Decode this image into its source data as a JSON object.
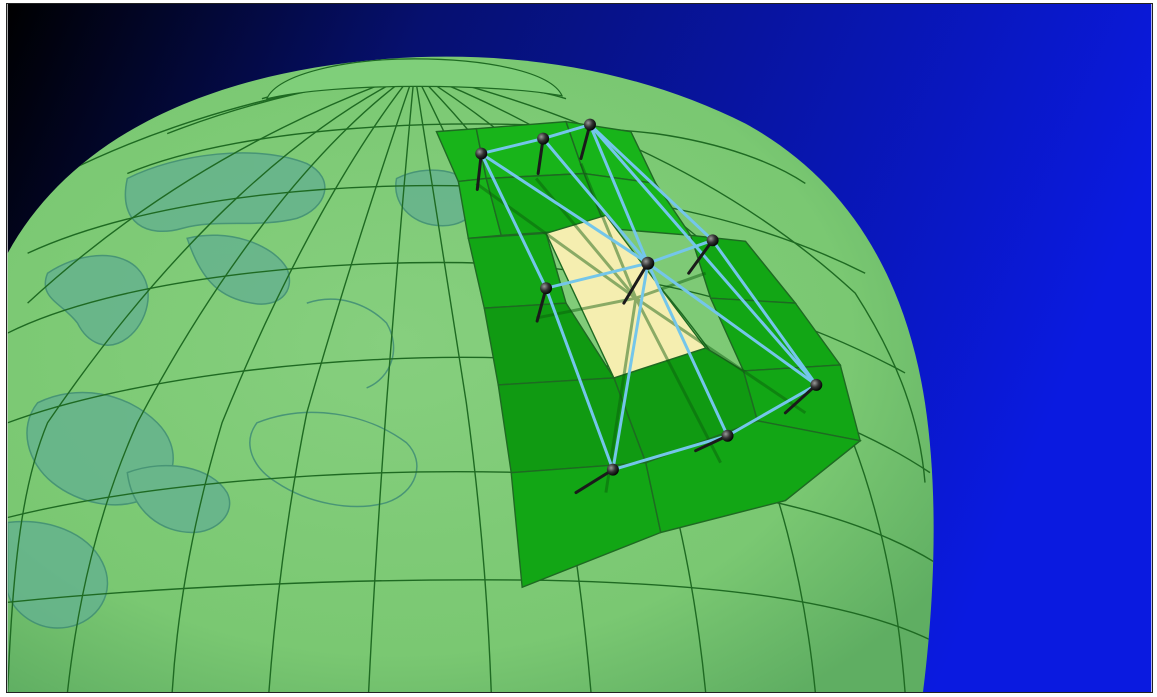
{
  "scene": {
    "colors": {
      "space_dark": "#000000",
      "space_blue": "#0a14c8",
      "globe_fill": "#7ed27a",
      "globe_grid": "#1e6a22",
      "continent": "#5aa98e",
      "continent_edge": "#3d8a72",
      "stencil_cell": "#19b81b",
      "stencil_cell_dark": "#129a14",
      "center_cell": "#f5eeb0",
      "mesh_edge": "#6fc3e8",
      "node": "#1a1a1a"
    },
    "icons": [
      "globe-icon",
      "grid-node-icon"
    ]
  }
}
